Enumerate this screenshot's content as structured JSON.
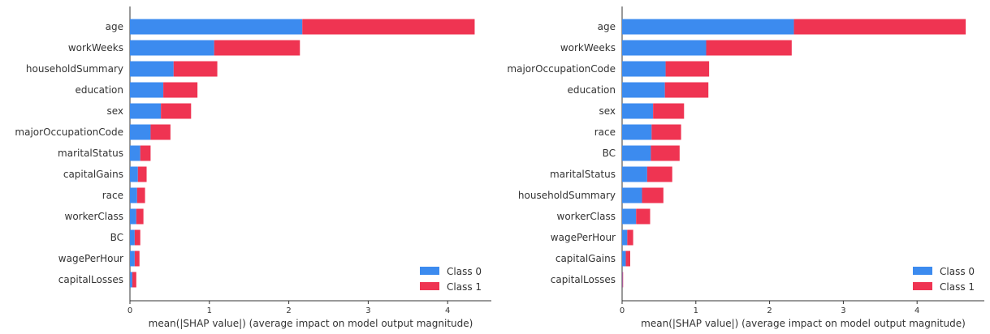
{
  "colors": {
    "class0": "#3c8bef",
    "class1": "#ef3452",
    "axis": "#333333"
  },
  "chart_data": [
    {
      "type": "bar",
      "orientation": "horizontal",
      "stacked": true,
      "categories": [
        "age",
        "workWeeks",
        "householdSummary",
        "education",
        "sex",
        "majorOccupationCode",
        "maritalStatus",
        "capitalGains",
        "race",
        "workerClass",
        "BC",
        "wagePerHour",
        "capitalLosses"
      ],
      "series": [
        {
          "name": "Class 0",
          "values": [
            2.17,
            1.06,
            0.55,
            0.42,
            0.39,
            0.26,
            0.13,
            0.1,
            0.09,
            0.08,
            0.06,
            0.06,
            0.03
          ]
        },
        {
          "name": "Class 1",
          "values": [
            2.17,
            1.08,
            0.55,
            0.43,
            0.38,
            0.25,
            0.13,
            0.11,
            0.1,
            0.09,
            0.07,
            0.06,
            0.05
          ]
        }
      ],
      "xlabel": "mean(|SHAP value|) (average impact on model output magnitude)",
      "xticks": [
        "0",
        "1",
        "2",
        "3",
        "4"
      ],
      "xlim": [
        0,
        4.5
      ],
      "legend": "bottom-right"
    },
    {
      "type": "bar",
      "orientation": "horizontal",
      "stacked": true,
      "categories": [
        "age",
        "workWeeks",
        "majorOccupationCode",
        "education",
        "sex",
        "race",
        "BC",
        "maritalStatus",
        "householdSummary",
        "workerClass",
        "wagePerHour",
        "capitalGains",
        "capitalLosses"
      ],
      "series": [
        {
          "name": "Class 0",
          "values": [
            2.33,
            1.14,
            0.59,
            0.58,
            0.42,
            0.4,
            0.39,
            0.34,
            0.27,
            0.19,
            0.07,
            0.05,
            0.005
          ]
        },
        {
          "name": "Class 1",
          "values": [
            2.33,
            1.16,
            0.59,
            0.59,
            0.42,
            0.4,
            0.39,
            0.34,
            0.29,
            0.19,
            0.08,
            0.06,
            0.005
          ]
        }
      ],
      "xlabel": "mean(|SHAP value|) (average impact on model output magnitude)",
      "xticks": [
        "0",
        "1",
        "2",
        "3",
        "4"
      ],
      "xlim": [
        0,
        4.9
      ],
      "legend": "bottom-right"
    }
  ]
}
